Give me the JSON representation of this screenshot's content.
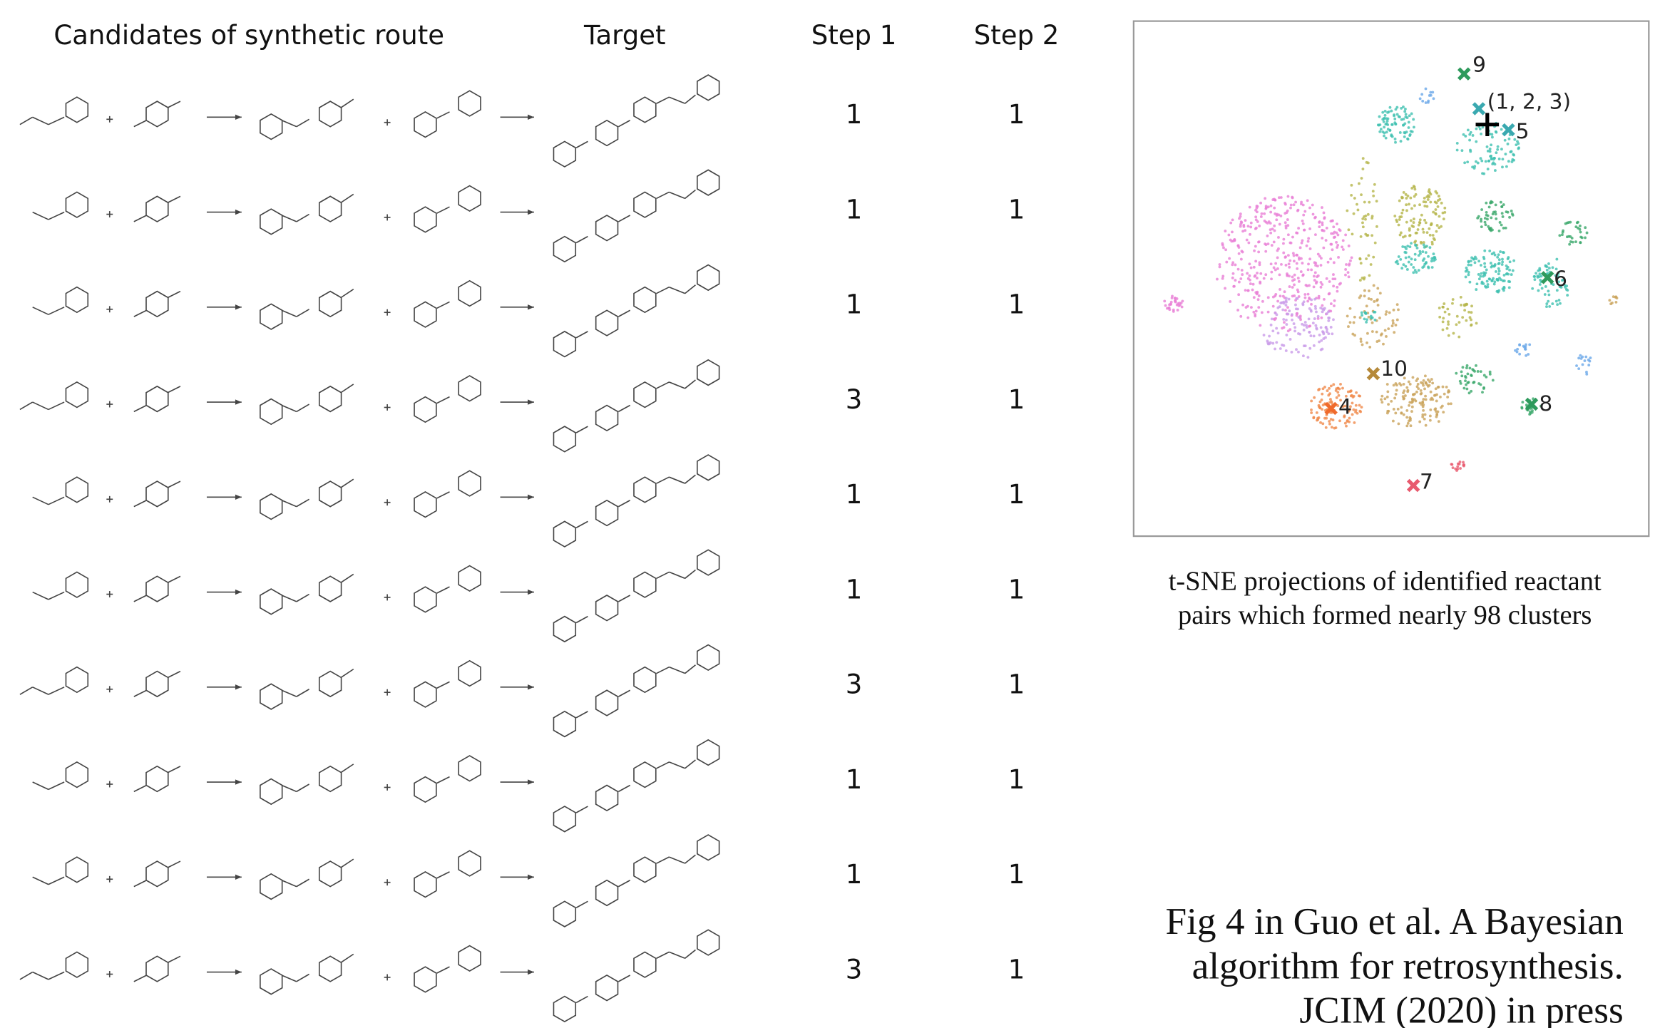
{
  "table": {
    "headers": [
      "Candidates of synthetic route",
      "Target",
      "Step 1",
      "Step 2"
    ],
    "rows": [
      [
        1,
        1
      ],
      [
        1,
        1
      ],
      [
        1,
        1
      ],
      [
        3,
        1
      ],
      [
        1,
        1
      ],
      [
        1,
        1
      ],
      [
        3,
        1
      ],
      [
        1,
        1
      ],
      [
        1,
        1
      ],
      [
        3,
        1
      ]
    ]
  },
  "tsne": {
    "labels": [
      "9",
      "(1, 2, 3)",
      "5",
      "6",
      "10",
      "4",
      "8",
      "7"
    ]
  },
  "caption": [
    "t-SNE projections of identified reactant",
    "pairs which formed nearly 98 clusters"
  ],
  "citation": [
    "Fig 4 in Guo et al. A Bayesian",
    "algorithm for retrosynthesis.",
    "JCIM (2020) in press"
  ]
}
